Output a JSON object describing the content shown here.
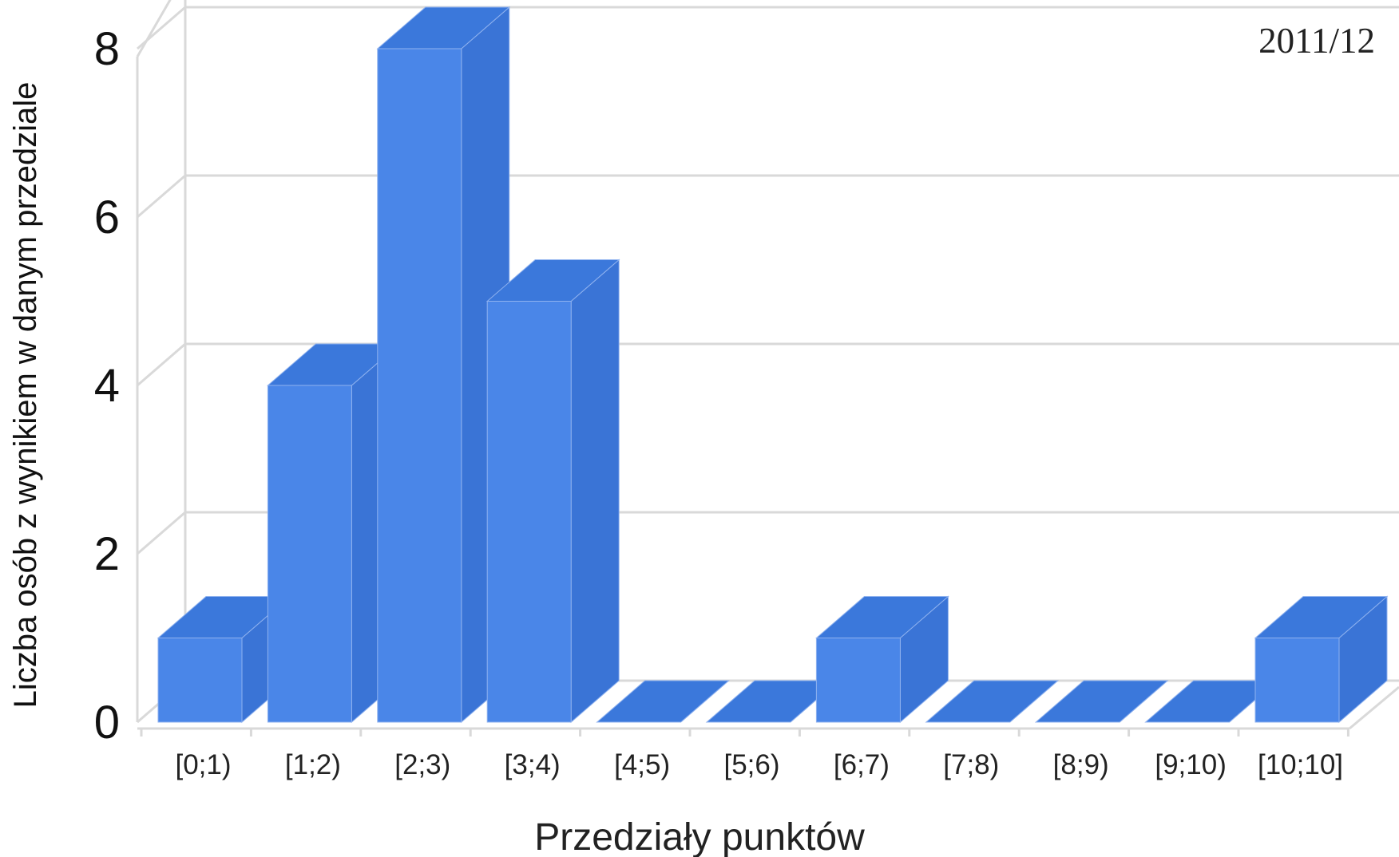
{
  "chart_data": {
    "type": "bar",
    "title": "",
    "annotation": "2011/12",
    "xlabel": "Przedziały punktów",
    "ylabel": "Liczba osób z wynikiem w danym przedziale",
    "categories": [
      "[0;1)",
      "[1;2)",
      "[2;3)",
      "[3;4)",
      "[4;5)",
      "[5;6)",
      "[6;7)",
      "[7;8)",
      "[8;9)",
      "[9;10)",
      "[10;10]"
    ],
    "values": [
      1,
      4,
      8,
      5,
      0,
      0,
      1,
      0,
      0,
      0,
      1
    ],
    "ylim": [
      0,
      8
    ],
    "yticks": [
      0,
      2,
      4,
      6,
      8
    ],
    "grid": true,
    "legend": "none",
    "style": "3d-column"
  },
  "colors": {
    "bar_front": "#4a86e8",
    "bar_side": "#3a74d6",
    "bar_top": "#3b78db",
    "grid": "#d9d9d9",
    "text": "#222222"
  }
}
